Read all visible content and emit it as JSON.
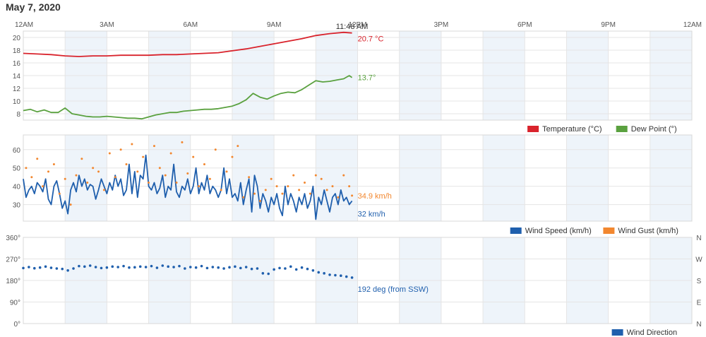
{
  "page": {
    "title": "May 7, 2020"
  },
  "colors": {
    "temperature": "#d9232c",
    "dew_point": "#5aa13f",
    "wind_speed": "#1f5fad",
    "wind_gust": "#f2872f",
    "wind_direction": "#1f5fad",
    "band": "#eef4fa",
    "grid": "#e5e5e5",
    "axis_text": "#555555"
  },
  "chart_data": [
    {
      "type": "line",
      "name": "temperature-dewpoint",
      "x_tick_labels": [
        "12AM",
        "3AM",
        "6AM",
        "9AM",
        "12PM",
        "3PM",
        "6PM",
        "9PM",
        "12AM"
      ],
      "current_time_label": "11:48 AM",
      "xlim_hours": [
        0,
        24
      ],
      "ylim": [
        7,
        21
      ],
      "y_ticks": [
        8,
        10,
        12,
        14,
        16,
        18,
        20
      ],
      "grid": true,
      "legend_position": "bottom-right",
      "series": [
        {
          "name": "Temperature (°C)",
          "color_key": "temperature",
          "end_label": "20.7 °C",
          "x": [
            0,
            0.5,
            1,
            1.5,
            2,
            2.5,
            3,
            3.5,
            4,
            4.5,
            5,
            5.5,
            6,
            6.5,
            7,
            7.5,
            8,
            8.5,
            9,
            9.5,
            10,
            10.5,
            11,
            11.5,
            11.8
          ],
          "y": [
            17.5,
            17.4,
            17.3,
            17.1,
            17.0,
            17.1,
            17.1,
            17.2,
            17.2,
            17.2,
            17.3,
            17.3,
            17.4,
            17.5,
            17.6,
            17.9,
            18.2,
            18.6,
            19.0,
            19.4,
            19.8,
            20.3,
            20.6,
            20.8,
            20.7
          ]
        },
        {
          "name": "Dew Point (°)",
          "color_key": "dew_point",
          "end_label": "13.7°",
          "x": [
            0,
            0.25,
            0.5,
            0.75,
            1,
            1.25,
            1.5,
            1.75,
            2,
            2.25,
            2.5,
            2.75,
            3,
            3.25,
            3.5,
            3.75,
            4,
            4.25,
            4.5,
            4.75,
            5,
            5.25,
            5.5,
            5.75,
            6,
            6.25,
            6.5,
            6.75,
            7,
            7.25,
            7.5,
            7.75,
            8,
            8.25,
            8.5,
            8.75,
            9,
            9.25,
            9.5,
            9.75,
            10,
            10.25,
            10.5,
            10.75,
            11,
            11.25,
            11.5,
            11.7,
            11.8
          ],
          "y": [
            8.5,
            8.7,
            8.3,
            8.6,
            8.2,
            8.2,
            8.9,
            8.0,
            7.8,
            7.6,
            7.5,
            7.5,
            7.6,
            7.5,
            7.4,
            7.3,
            7.3,
            7.2,
            7.5,
            7.8,
            8.0,
            8.2,
            8.2,
            8.4,
            8.5,
            8.6,
            8.7,
            8.7,
            8.8,
            9.0,
            9.2,
            9.6,
            10.2,
            11.2,
            10.6,
            10.3,
            10.8,
            11.2,
            11.4,
            11.3,
            11.8,
            12.5,
            13.2,
            13.0,
            13.1,
            13.3,
            13.5,
            14.0,
            13.7
          ]
        }
      ]
    },
    {
      "type": "line",
      "name": "wind",
      "xlim_hours": [
        0,
        24
      ],
      "ylim": [
        21,
        68
      ],
      "y_ticks": [
        30,
        40,
        50,
        60
      ],
      "grid": true,
      "legend_position": "bottom-right",
      "series": [
        {
          "name": "Wind Speed (km/h)",
          "color_key": "wind_speed",
          "style": "line",
          "end_label": "32 km/h",
          "x": [
            0,
            0.1,
            0.2,
            0.3,
            0.4,
            0.5,
            0.6,
            0.7,
            0.8,
            0.9,
            1,
            1.1,
            1.2,
            1.3,
            1.4,
            1.5,
            1.6,
            1.7,
            1.8,
            1.9,
            2,
            2.1,
            2.2,
            2.3,
            2.4,
            2.5,
            2.6,
            2.7,
            2.8,
            2.9,
            3,
            3.1,
            3.2,
            3.3,
            3.4,
            3.5,
            3.6,
            3.7,
            3.8,
            3.9,
            4,
            4.1,
            4.2,
            4.3,
            4.4,
            4.5,
            4.6,
            4.7,
            4.8,
            4.9,
            5,
            5.1,
            5.2,
            5.3,
            5.4,
            5.5,
            5.6,
            5.7,
            5.8,
            5.9,
            6,
            6.1,
            6.2,
            6.3,
            6.4,
            6.5,
            6.6,
            6.7,
            6.8,
            6.9,
            7,
            7.1,
            7.2,
            7.3,
            7.4,
            7.5,
            7.6,
            7.7,
            7.8,
            7.9,
            8,
            8.1,
            8.2,
            8.3,
            8.4,
            8.5,
            8.6,
            8.7,
            8.8,
            8.9,
            9,
            9.1,
            9.2,
            9.3,
            9.4,
            9.5,
            9.6,
            9.7,
            9.8,
            9.9,
            10,
            10.1,
            10.2,
            10.3,
            10.4,
            10.5,
            10.6,
            10.7,
            10.8,
            10.9,
            11,
            11.1,
            11.2,
            11.3,
            11.4,
            11.5,
            11.6,
            11.7,
            11.8
          ],
          "y": [
            44,
            34,
            38,
            40,
            36,
            42,
            40,
            37,
            44,
            33,
            30,
            40,
            43,
            36,
            28,
            32,
            25,
            38,
            42,
            37,
            46,
            40,
            44,
            38,
            41,
            40,
            33,
            38,
            44,
            40,
            36,
            42,
            38,
            46,
            40,
            44,
            35,
            38,
            52,
            36,
            48,
            34,
            46,
            44,
            57,
            40,
            38,
            42,
            36,
            39,
            46,
            34,
            40,
            38,
            52,
            37,
            34,
            40,
            38,
            44,
            36,
            40,
            50,
            36,
            42,
            38,
            46,
            36,
            40,
            38,
            34,
            38,
            50,
            36,
            44,
            34,
            36,
            32,
            42,
            30,
            38,
            44,
            26,
            46,
            40,
            28,
            36,
            32,
            26,
            34,
            30,
            36,
            28,
            24,
            40,
            30,
            36,
            32,
            26,
            34,
            30,
            36,
            28,
            32,
            40,
            22,
            34,
            30,
            38,
            32,
            26,
            34,
            36,
            30,
            38,
            32,
            34,
            30,
            32
          ]
        },
        {
          "name": "Wind Gust (km/h)",
          "color_key": "wind_gust",
          "style": "points",
          "end_label": "34.9 km/h",
          "x": [
            0.1,
            0.3,
            0.5,
            0.7,
            0.9,
            1.1,
            1.3,
            1.5,
            1.7,
            1.9,
            2.1,
            2.3,
            2.5,
            2.7,
            2.9,
            3.1,
            3.3,
            3.5,
            3.7,
            3.9,
            4.1,
            4.3,
            4.5,
            4.7,
            4.9,
            5.1,
            5.3,
            5.5,
            5.7,
            5.9,
            6.1,
            6.3,
            6.5,
            6.7,
            6.9,
            7.1,
            7.3,
            7.5,
            7.7,
            7.9,
            8.1,
            8.3,
            8.5,
            8.7,
            8.9,
            9.1,
            9.3,
            9.5,
            9.7,
            9.9,
            10.1,
            10.3,
            10.5,
            10.7,
            10.9,
            11.1,
            11.3,
            11.5,
            11.7,
            11.8
          ],
          "y": [
            50,
            45,
            55,
            40,
            48,
            52,
            36,
            44,
            30,
            46,
            55,
            42,
            50,
            48,
            38,
            58,
            45,
            60,
            52,
            63,
            48,
            56,
            42,
            62,
            50,
            46,
            58,
            42,
            64,
            47,
            56,
            40,
            52,
            44,
            60,
            38,
            48,
            56,
            62,
            34,
            45,
            36,
            32,
            38,
            44,
            40,
            36,
            40,
            46,
            38,
            42,
            36,
            46,
            44,
            38,
            40,
            34,
            46,
            40,
            34.9
          ]
        }
      ]
    },
    {
      "type": "scatter",
      "name": "wind-direction",
      "xlim_hours": [
        0,
        24
      ],
      "ylim": [
        0,
        360
      ],
      "y_tick_labels": [
        "0°",
        "90°",
        "180°",
        "270°",
        "360°"
      ],
      "y_ticks": [
        0,
        90,
        180,
        270,
        360
      ],
      "right_tick_labels": [
        "N",
        "E",
        "S",
        "W",
        "N"
      ],
      "grid": true,
      "legend_position": "bottom-right",
      "series": [
        {
          "name": "Wind Direction",
          "color_key": "wind_direction",
          "end_label": "192 deg (from SSW)",
          "x": [
            0,
            0.2,
            0.4,
            0.6,
            0.8,
            1,
            1.2,
            1.4,
            1.6,
            1.8,
            2,
            2.2,
            2.4,
            2.6,
            2.8,
            3,
            3.2,
            3.4,
            3.6,
            3.8,
            4,
            4.2,
            4.4,
            4.6,
            4.8,
            5,
            5.2,
            5.4,
            5.6,
            5.8,
            6,
            6.2,
            6.4,
            6.6,
            6.8,
            7,
            7.2,
            7.4,
            7.6,
            7.8,
            8,
            8.2,
            8.4,
            8.6,
            8.8,
            9,
            9.2,
            9.4,
            9.6,
            9.8,
            10,
            10.2,
            10.4,
            10.6,
            10.8,
            11,
            11.2,
            11.4,
            11.6,
            11.8
          ],
          "y": [
            232,
            236,
            231,
            234,
            238,
            233,
            230,
            228,
            222,
            230,
            240,
            238,
            242,
            236,
            232,
            234,
            238,
            236,
            240,
            234,
            235,
            238,
            236,
            240,
            233,
            242,
            238,
            236,
            240,
            230,
            236,
            234,
            240,
            232,
            236,
            234,
            230,
            235,
            238,
            232,
            236,
            228,
            230,
            210,
            208,
            226,
            232,
            230,
            238,
            226,
            234,
            228,
            222,
            214,
            210,
            204,
            202,
            200,
            196,
            192
          ]
        }
      ]
    }
  ],
  "legends": {
    "temperature": "Temperature (°C)",
    "dew_point": "Dew Point (°)",
    "wind_speed": "Wind Speed (km/h)",
    "wind_gust": "Wind Gust (km/h)",
    "wind_direction": "Wind Direction"
  }
}
